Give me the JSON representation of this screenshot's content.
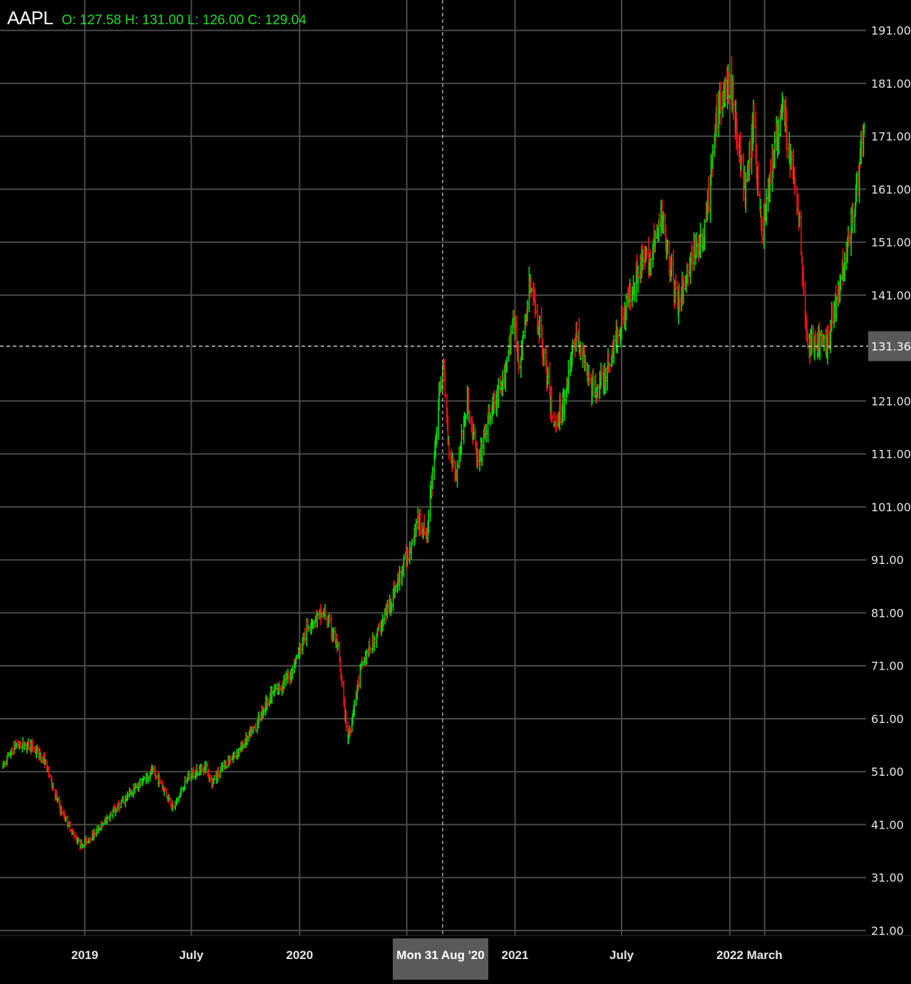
{
  "header": {
    "symbol": "AAPL",
    "ohlc_label": "O: 127.58 H: 131.00 L: 126.00 C: 129.04"
  },
  "crosshair": {
    "price_label": "131.36",
    "price": 131.36,
    "date_label": "Mon 31 Aug '20",
    "date": "2020-08-31"
  },
  "colors": {
    "background": "#000000",
    "grid": "#4a4a4a",
    "up": "#00dd00",
    "down": "#ee1111",
    "axis_text": "#e6e6e6",
    "crosshair_label_bg": "#5a5a5a",
    "ohlc_text": "#22dd22"
  },
  "chart_data": {
    "type": "ohlc",
    "title": "AAPL",
    "xlabel": "",
    "ylabel": "",
    "ylim": [
      21,
      196
    ],
    "grid": true,
    "x_ticks": [
      {
        "label": "2019",
        "date": "2019-01-01"
      },
      {
        "label": "July",
        "date": "2019-07-01"
      },
      {
        "label": "2020",
        "date": "2020-01-01"
      },
      {
        "label": "",
        "date": "2020-07-01"
      },
      {
        "label": "2021",
        "date": "2021-01-01"
      },
      {
        "label": "July",
        "date": "2021-07-01"
      },
      {
        "label": "2022",
        "date": "2022-01-01"
      },
      {
        "label": "March",
        "date": "2022-03-01"
      }
    ],
    "y_ticks": [
      "191.00",
      "181.00",
      "171.00",
      "161.00",
      "151.00",
      "141.00",
      "121.00",
      "111.00",
      "101.00",
      "91.00",
      "81.00",
      "71.00",
      "61.00",
      "51.00",
      "41.00",
      "31.00",
      "21.00"
    ],
    "x_range": [
      "2018-08-15",
      "2022-05-20"
    ],
    "series": [
      {
        "approx_closes_by_date": [
          [
            "2018-08-15",
            52
          ],
          [
            "2018-09-05",
            56
          ],
          [
            "2018-10-01",
            56
          ],
          [
            "2018-10-25",
            53
          ],
          [
            "2018-11-20",
            44
          ],
          [
            "2018-12-24",
            37
          ],
          [
            "2019-01-15",
            39
          ],
          [
            "2019-02-15",
            43
          ],
          [
            "2019-03-20",
            47
          ],
          [
            "2019-04-25",
            51
          ],
          [
            "2019-05-10",
            49
          ],
          [
            "2019-06-01",
            44
          ],
          [
            "2019-06-25",
            50
          ],
          [
            "2019-07-25",
            52
          ],
          [
            "2019-08-05",
            49
          ],
          [
            "2019-08-25",
            52
          ],
          [
            "2019-09-20",
            55
          ],
          [
            "2019-10-15",
            59
          ],
          [
            "2019-11-10",
            65
          ],
          [
            "2019-12-15",
            69
          ],
          [
            "2020-01-17",
            79
          ],
          [
            "2020-02-12",
            81
          ],
          [
            "2020-03-05",
            75
          ],
          [
            "2020-03-23",
            57
          ],
          [
            "2020-04-15",
            71
          ],
          [
            "2020-05-20",
            79
          ],
          [
            "2020-06-20",
            88
          ],
          [
            "2020-07-20",
            98
          ],
          [
            "2020-08-05",
            96
          ],
          [
            "2020-08-20",
            115
          ],
          [
            "2020-08-31",
            129
          ],
          [
            "2020-09-10",
            113
          ],
          [
            "2020-09-23",
            107
          ],
          [
            "2020-10-12",
            121
          ],
          [
            "2020-10-30",
            109
          ],
          [
            "2020-11-20",
            119
          ],
          [
            "2020-12-10",
            123
          ],
          [
            "2020-12-28",
            136
          ],
          [
            "2021-01-10",
            128
          ],
          [
            "2021-01-26",
            143
          ],
          [
            "2021-02-15",
            133
          ],
          [
            "2021-03-08",
            116
          ],
          [
            "2021-03-25",
            121
          ],
          [
            "2021-04-15",
            134
          ],
          [
            "2021-05-12",
            123
          ],
          [
            "2021-06-01",
            125
          ],
          [
            "2021-07-01",
            136
          ],
          [
            "2021-07-28",
            146
          ],
          [
            "2021-08-20",
            148
          ],
          [
            "2021-09-07",
            156
          ],
          [
            "2021-10-04",
            139
          ],
          [
            "2021-10-28",
            148
          ],
          [
            "2021-11-19",
            152
          ],
          [
            "2021-12-13",
            178
          ],
          [
            "2022-01-03",
            181
          ],
          [
            "2022-01-27",
            160
          ],
          [
            "2022-02-10",
            173
          ],
          [
            "2022-02-24",
            153
          ],
          [
            "2022-03-31",
            177
          ],
          [
            "2022-04-12",
            168
          ],
          [
            "2022-04-28",
            157
          ],
          [
            "2022-05-12",
            132
          ],
          [
            "2022-06-16",
            132
          ],
          [
            "2022-07-28",
            155
          ],
          [
            "2022-08-17",
            172
          ]
        ]
      }
    ]
  }
}
